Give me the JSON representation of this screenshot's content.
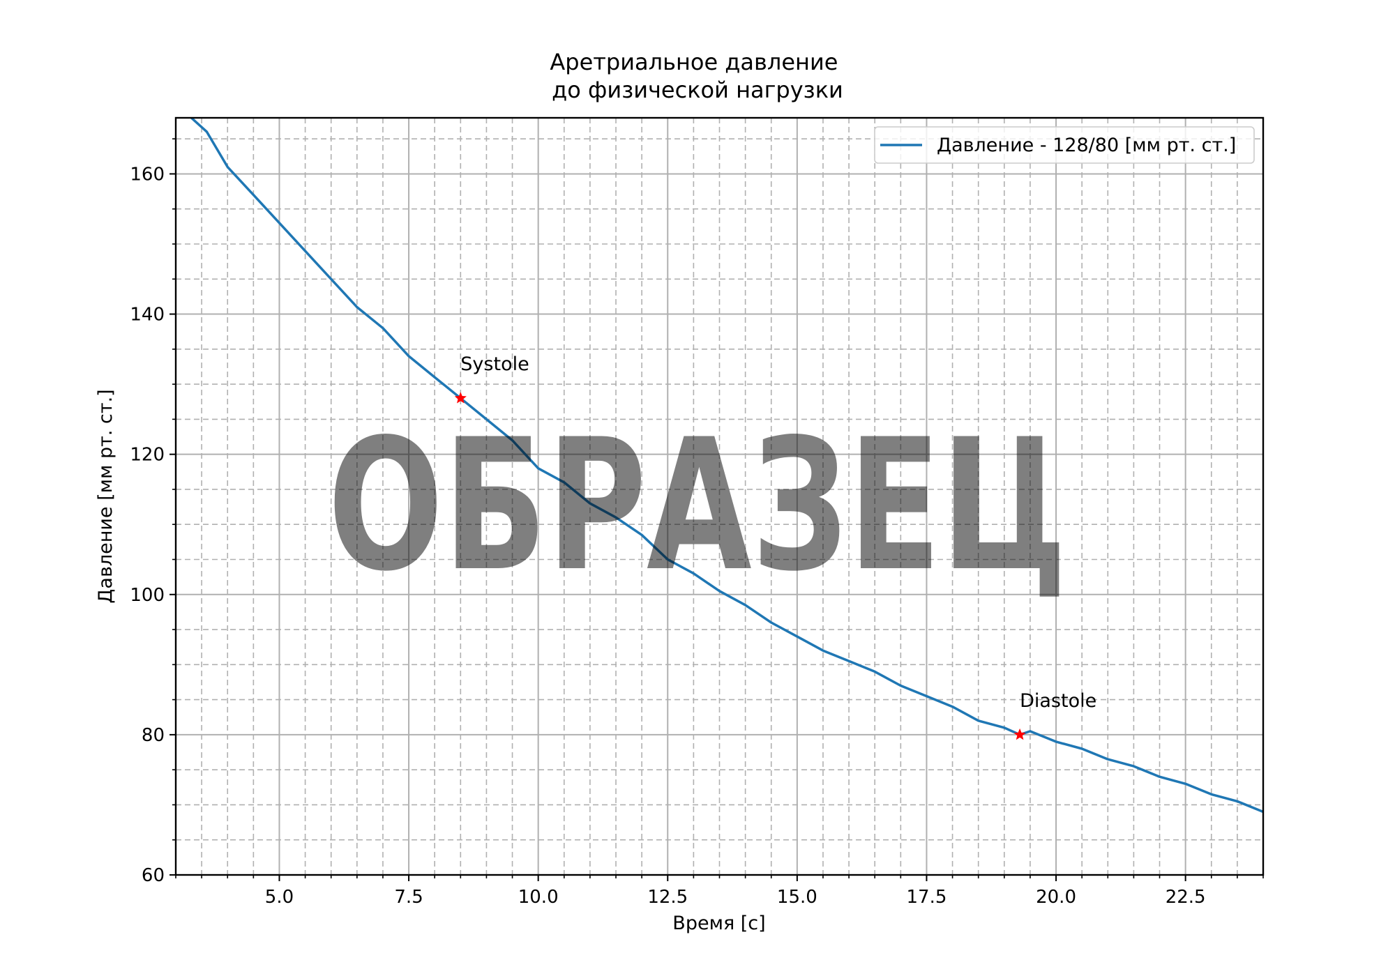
{
  "chart_data": {
    "type": "line",
    "title": "Аретриальное давление\nдо физической нагрузки",
    "xlabel": "Время [с]",
    "ylabel": "Давление [мм рт. ст.]",
    "xlim": [
      3.0,
      24.0
    ],
    "ylim": [
      60,
      168
    ],
    "x_ticks": [
      5.0,
      7.5,
      10.0,
      12.5,
      15.0,
      17.5,
      20.0,
      22.5
    ],
    "x_tick_labels": [
      "5.0",
      "7.5",
      "10.0",
      "12.5",
      "15.0",
      "17.5",
      "20.0",
      "22.5"
    ],
    "y_ticks": [
      60,
      80,
      100,
      120,
      140,
      160
    ],
    "y_tick_labels": [
      "60",
      "80",
      "100",
      "120",
      "140",
      "160"
    ],
    "x_minor_step": 0.5,
    "y_minor_step": 5,
    "grid": true,
    "legend_placement": "upper right",
    "series": [
      {
        "name": "Давление - 128/80 [мм рт. ст.]",
        "color": "#1f77b4",
        "x": [
          3.3,
          3.6,
          4.0,
          4.5,
          5.0,
          5.5,
          6.0,
          6.5,
          7.0,
          7.5,
          8.0,
          8.5,
          9.0,
          9.5,
          10.0,
          10.5,
          11.0,
          11.5,
          12.0,
          12.5,
          13.0,
          13.5,
          14.0,
          14.5,
          15.0,
          15.5,
          16.0,
          16.5,
          17.0,
          17.5,
          18.0,
          18.5,
          19.0,
          19.3,
          19.5,
          20.0,
          20.5,
          21.0,
          21.5,
          22.0,
          22.5,
          23.0,
          23.5,
          24.0
        ],
        "y": [
          168,
          166,
          161,
          157,
          153,
          149,
          145,
          141,
          138,
          134,
          131,
          128,
          125,
          122,
          118,
          116,
          113,
          111,
          108.5,
          105,
          103,
          100.5,
          98.5,
          96,
          94,
          92,
          90.5,
          89,
          87,
          85.5,
          84,
          82,
          81,
          80,
          80.5,
          79,
          78,
          76.5,
          75.5,
          74,
          73,
          71.5,
          70.5,
          69
        ]
      }
    ],
    "markers": [
      {
        "label": "Systole",
        "x": 8.5,
        "y": 128,
        "color": "#ff0000",
        "symbol": "star"
      },
      {
        "label": "Diastole",
        "x": 19.3,
        "y": 80,
        "color": "#ff0000",
        "symbol": "star"
      }
    ]
  },
  "watermark": {
    "text": "ОБРАЗЕЦ"
  }
}
